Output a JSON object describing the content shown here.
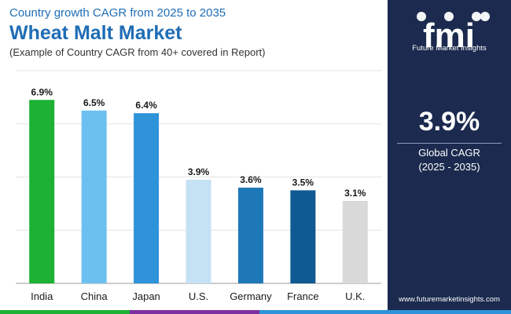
{
  "header": {
    "subtitle": "Country growth CAGR from 2025 to 2035",
    "title": "Wheat Malt Market",
    "caption": "(Example of Country CAGR from 40+ covered in Report)"
  },
  "chart_data": {
    "type": "bar",
    "categories": [
      "India",
      "China",
      "Japan",
      "U.S.",
      "Germany",
      "France",
      "U.K."
    ],
    "values": [
      6.9,
      6.5,
      6.4,
      3.9,
      3.6,
      3.5,
      3.1
    ],
    "value_labels": [
      "6.9%",
      "6.5%",
      "6.4%",
      "3.9%",
      "3.6%",
      "3.5%",
      "3.1%"
    ],
    "colors": [
      "#1db233",
      "#6cc0f0",
      "#2e93d9",
      "#c5e2f5",
      "#1e78b8",
      "#0f5a92",
      "#d9d9d9"
    ],
    "ylim": [
      0,
      8
    ],
    "gridlines": [
      0,
      2,
      4,
      6,
      8
    ],
    "title": "Wheat Malt Market",
    "xlabel": "",
    "ylabel": ""
  },
  "panel": {
    "logo_text": "fmi",
    "brand": "Future Market Insights",
    "cagr_value": "3.9%",
    "cagr_label": "Global CAGR",
    "cagr_period": "(2025 - 2035)",
    "url": "www.futuremarketinsights.com"
  },
  "colors": {
    "title_blue": "#1f6db5",
    "panel_bg": "#1b2a4e",
    "strip": [
      "#1db233",
      "#7b2fa0",
      "#2e93d9"
    ]
  }
}
